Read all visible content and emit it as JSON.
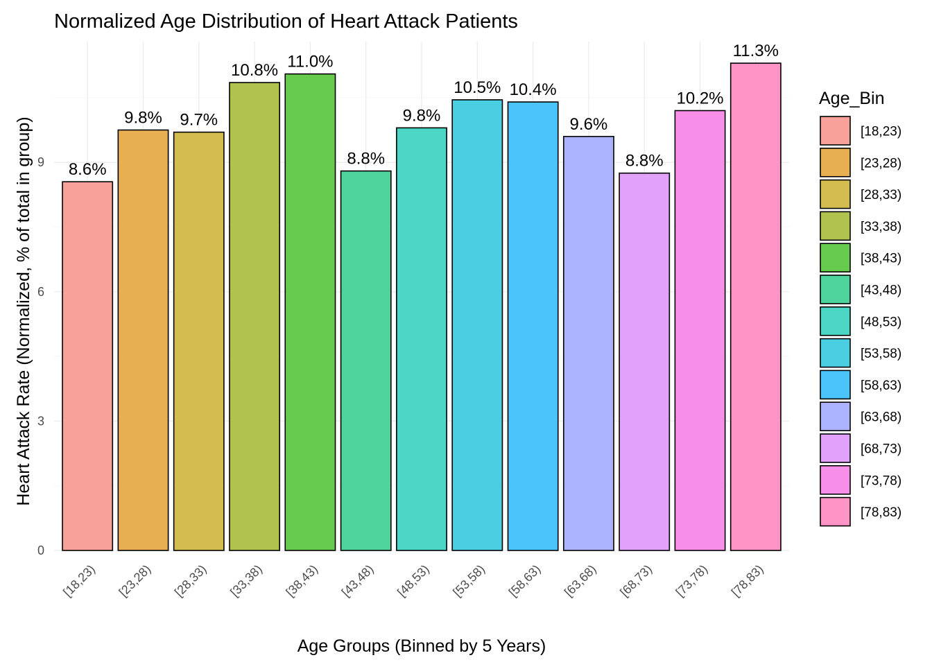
{
  "chart_data": {
    "type": "bar",
    "title": "Normalized Age Distribution of Heart Attack Patients",
    "xlabel": "Age Groups (Binned by 5 Years)",
    "ylabel": "Heart Attack Rate (Normalized, % of total in group)",
    "categories": [
      "[18,23)",
      "[23,28)",
      "[28,33)",
      "[33,38)",
      "[38,43)",
      "[43,48)",
      "[48,53)",
      "[53,58)",
      "[58,63)",
      "[63,68)",
      "[68,73)",
      "[73,78)",
      "[78,83)"
    ],
    "values": [
      8.55,
      9.75,
      9.7,
      10.85,
      11.05,
      8.8,
      9.8,
      10.45,
      10.4,
      9.6,
      8.75,
      10.2,
      11.3
    ],
    "labels": [
      "8.6%",
      "9.8%",
      "9.7%",
      "10.8%",
      "11.0%",
      "8.8%",
      "9.8%",
      "10.5%",
      "10.4%",
      "9.6%",
      "8.8%",
      "10.2%",
      "11.3%"
    ],
    "colors": [
      "#F8A09A",
      "#E8AE52",
      "#D3BC50",
      "#B1C34E",
      "#67CC4E",
      "#4ED39C",
      "#4BD6C6",
      "#4ACEE2",
      "#4BC3FB",
      "#AEB3FF",
      "#E2A2FB",
      "#F78FE8",
      "#FE94C5"
    ],
    "yticks": [
      0,
      3,
      6,
      9
    ],
    "ylim": [
      0,
      11.8
    ],
    "grid": true,
    "legend": {
      "title": "Age_Bin",
      "position": "right",
      "items": [
        "[18,23)",
        "[23,28)",
        "[28,33)",
        "[33,38)",
        "[38,43)",
        "[43,48)",
        "[48,53)",
        "[53,58)",
        "[58,63)",
        "[63,68)",
        "[68,73)",
        "[73,78)",
        "[78,83)"
      ]
    }
  }
}
